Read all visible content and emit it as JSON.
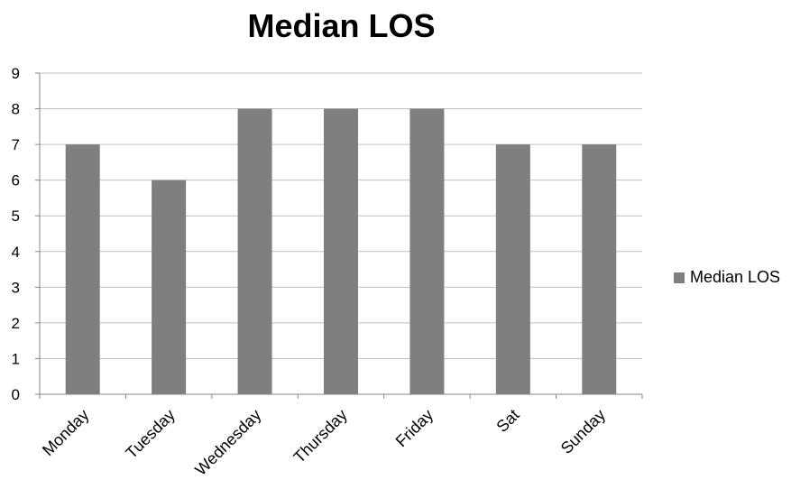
{
  "chart_data": {
    "type": "bar",
    "title": "Median LOS",
    "xlabel": "",
    "ylabel": "",
    "categories": [
      "Monday",
      "Tuesday",
      "Wednesday",
      "Thursday",
      "Friday",
      "Sat",
      "Sunday"
    ],
    "series": [
      {
        "name": "Median LOS",
        "values": [
          7,
          6,
          8,
          8,
          8,
          7,
          7
        ]
      }
    ],
    "ylim": [
      0,
      9
    ],
    "yticks": [
      0,
      1,
      2,
      3,
      4,
      5,
      6,
      7,
      8,
      9
    ],
    "grid": true,
    "legend_position": "right",
    "bar_color": "#7f7f80",
    "grid_color": "#bfbfbf"
  }
}
